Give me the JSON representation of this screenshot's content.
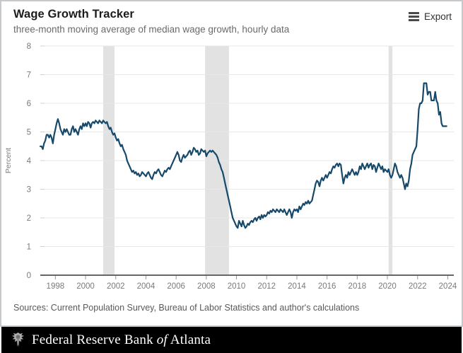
{
  "header": {
    "export_label": "Export",
    "export_icon": "hamburger-menu-icon"
  },
  "sources_note": "Sources: Current Population Survey, Bureau of Labor Statistics and author's calculations",
  "bank_bar": {
    "seal_icon": "federal-reserve-seal",
    "prefix": "Federal Reserve Bank",
    "of": "of",
    "suffix": "Atlanta"
  },
  "colors": {
    "line": "#17496b",
    "recession_band": "#e2e2e2",
    "gridline": "#e7e7e7",
    "axis_line": "#63666a",
    "tick_text": "#7a7a7a",
    "footer_bg": "#000000",
    "card_border": "#c6c9cc"
  },
  "chart_data": {
    "type": "line",
    "title": "Wage Growth Tracker",
    "subtitle": "three-month moving average of median wage growth, hourly data",
    "xlabel": "",
    "ylabel": "Percent",
    "ylim": [
      0,
      8
    ],
    "yticks": [
      0,
      1,
      2,
      3,
      4,
      5,
      6,
      7,
      8
    ],
    "xlim": [
      1997.0,
      2024.4
    ],
    "xticks": [
      1998,
      2000,
      2002,
      2004,
      2006,
      2008,
      2010,
      2012,
      2014,
      2016,
      2018,
      2020,
      2022,
      2024
    ],
    "grid": "horizontal-only",
    "legend": "none",
    "recession_bands": [
      {
        "from": 2001.17,
        "to": 2001.92
      },
      {
        "from": 2007.92,
        "to": 2009.5
      },
      {
        "from": 2020.08,
        "to": 2020.33
      }
    ],
    "series": [
      {
        "name": "Median wage growth (3-month moving average, hourly data)",
        "start_year": 1997,
        "start_month": 1,
        "frequency": "monthly",
        "unit": "percent",
        "values": [
          4.5,
          4.5,
          4.4,
          4.6,
          4.7,
          4.9,
          4.9,
          4.8,
          4.9,
          4.8,
          4.6,
          4.9,
          5.1,
          5.3,
          5.45,
          5.3,
          5.1,
          5.0,
          4.9,
          5.1,
          5.0,
          5.1,
          5.0,
          4.9,
          4.9,
          5.1,
          5.2,
          5.0,
          5.1,
          5.0,
          4.9,
          5.1,
          5.2,
          5.1,
          5.3,
          5.2,
          5.3,
          5.2,
          5.35,
          5.3,
          5.15,
          5.3,
          5.35,
          5.3,
          5.4,
          5.35,
          5.3,
          5.4,
          5.35,
          5.3,
          5.4,
          5.35,
          5.3,
          5.35,
          5.2,
          5.1,
          5.15,
          5.0,
          4.9,
          4.95,
          4.8,
          4.7,
          4.75,
          4.6,
          4.5,
          4.55,
          4.4,
          4.3,
          4.2,
          4.0,
          3.9,
          3.8,
          3.7,
          3.6,
          3.65,
          3.55,
          3.6,
          3.5,
          3.55,
          3.45,
          3.5,
          3.6,
          3.55,
          3.5,
          3.45,
          3.55,
          3.6,
          3.5,
          3.4,
          3.35,
          3.5,
          3.6,
          3.55,
          3.65,
          3.7,
          3.6,
          3.5,
          3.45,
          3.55,
          3.65,
          3.6,
          3.7,
          3.75,
          3.7,
          3.8,
          3.9,
          4.0,
          4.1,
          4.2,
          4.3,
          4.2,
          4.0,
          3.95,
          4.1,
          4.2,
          4.1,
          4.15,
          4.2,
          4.3,
          4.35,
          4.2,
          4.3,
          4.45,
          4.4,
          4.3,
          4.35,
          4.2,
          4.25,
          4.4,
          4.35,
          4.3,
          4.35,
          4.15,
          4.25,
          4.3,
          4.35,
          4.3,
          4.35,
          4.3,
          4.25,
          4.2,
          4.1,
          3.95,
          3.85,
          3.7,
          3.6,
          3.4,
          3.2,
          3.0,
          2.8,
          2.6,
          2.4,
          2.2,
          2.0,
          1.9,
          1.8,
          1.7,
          1.65,
          1.9,
          1.8,
          1.7,
          1.9,
          1.75,
          1.65,
          1.7,
          1.8,
          1.75,
          1.85,
          1.9,
          1.85,
          1.95,
          2.0,
          1.9,
          2.0,
          2.05,
          1.95,
          2.1,
          2.0,
          2.1,
          2.05,
          2.1,
          2.2,
          2.15,
          2.25,
          2.2,
          2.3,
          2.25,
          2.2,
          2.3,
          2.25,
          2.2,
          2.3,
          2.25,
          2.2,
          2.3,
          2.2,
          2.1,
          2.2,
          2.3,
          2.2,
          2.0,
          2.2,
          2.3,
          2.25,
          2.3,
          2.2,
          2.4,
          2.3,
          2.4,
          2.5,
          2.45,
          2.55,
          2.5,
          2.6,
          2.5,
          2.55,
          2.6,
          2.8,
          3.0,
          3.2,
          3.3,
          3.25,
          3.1,
          3.3,
          3.4,
          3.3,
          3.4,
          3.5,
          3.4,
          3.5,
          3.6,
          3.55,
          3.7,
          3.8,
          3.75,
          3.85,
          3.9,
          3.8,
          3.9,
          3.85,
          3.5,
          3.2,
          3.4,
          3.5,
          3.4,
          3.6,
          3.5,
          3.6,
          3.7,
          3.6,
          3.5,
          3.6,
          3.5,
          3.6,
          3.8,
          3.7,
          3.9,
          3.8,
          3.7,
          3.8,
          3.9,
          3.75,
          3.85,
          3.9,
          3.7,
          3.85,
          3.8,
          3.6,
          3.75,
          3.9,
          3.8,
          3.7,
          3.8,
          3.6,
          3.7,
          3.65,
          3.6,
          3.7,
          3.5,
          3.4,
          3.5,
          3.7,
          3.9,
          3.8,
          3.6,
          3.5,
          3.4,
          3.5,
          3.4,
          3.2,
          3.0,
          3.2,
          3.1,
          3.3,
          3.7,
          3.9,
          4.2,
          4.3,
          4.4,
          4.5,
          5.1,
          5.8,
          6.0,
          6.0,
          6.1,
          6.7,
          6.7,
          6.7,
          6.3,
          6.4,
          6.4,
          6.1,
          6.1,
          6.1,
          6.4,
          6.1,
          6.0,
          5.6,
          5.7,
          5.3,
          5.2,
          5.2,
          5.2,
          5.2
        ]
      }
    ]
  }
}
